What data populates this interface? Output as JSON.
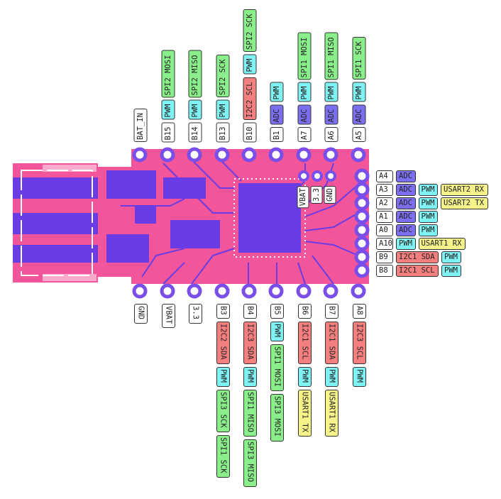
{
  "top_pins": [
    {
      "name": "BAT_IN",
      "funcs": []
    },
    {
      "name": "B15",
      "funcs": [
        {
          "t": "PWM",
          "k": "pwm"
        },
        {
          "t": "SPI2 MOSI",
          "k": "spi"
        }
      ]
    },
    {
      "name": "B14",
      "funcs": [
        {
          "t": "PWM",
          "k": "pwm"
        },
        {
          "t": "SPI2 MISO",
          "k": "spi"
        }
      ]
    },
    {
      "name": "B13",
      "funcs": [
        {
          "t": "PWM",
          "k": "pwm"
        },
        {
          "t": "SPI2 SCK",
          "k": "spi"
        }
      ]
    },
    {
      "name": "B10",
      "funcs": [
        {
          "t": "I2C2 SCL",
          "k": "i2c"
        },
        {
          "t": "PWM",
          "k": "pwm"
        },
        {
          "t": "SPI2 SCK",
          "k": "spi"
        }
      ]
    },
    {
      "name": "B1",
      "funcs": [
        {
          "t": "ADC",
          "k": "adc"
        },
        {
          "t": "PWM",
          "k": "pwm"
        }
      ]
    },
    {
      "name": "A7",
      "funcs": [
        {
          "t": "ADC",
          "k": "adc"
        },
        {
          "t": "PWM",
          "k": "pwm"
        },
        {
          "t": "SPI1 MOSI",
          "k": "spi"
        }
      ]
    },
    {
      "name": "A6",
      "funcs": [
        {
          "t": "ADC",
          "k": "adc"
        },
        {
          "t": "PWM",
          "k": "pwm"
        },
        {
          "t": "SPI1 MISO",
          "k": "spi"
        }
      ]
    },
    {
      "name": "A5",
      "funcs": [
        {
          "t": "ADC",
          "k": "adc"
        },
        {
          "t": "PWM",
          "k": "pwm"
        },
        {
          "t": "SPI1 SCK",
          "k": "spi"
        }
      ]
    }
  ],
  "bottom_pins": [
    {
      "name": "GND",
      "funcs": []
    },
    {
      "name": "VBAT",
      "funcs": []
    },
    {
      "name": "3.3",
      "funcs": []
    },
    {
      "name": "B3",
      "funcs": [
        {
          "t": "I2C2 SDA",
          "k": "i2c"
        },
        {
          "t": "PWM",
          "k": "pwm"
        },
        {
          "t": "SPI3 SCK",
          "k": "spi"
        },
        {
          "t": "SPI1 SCK",
          "k": "spi"
        }
      ]
    },
    {
      "name": "B4",
      "funcs": [
        {
          "t": "I2C3 SDA",
          "k": "i2c"
        },
        {
          "t": "PWM",
          "k": "pwm"
        },
        {
          "t": "SPI1 MISO",
          "k": "spi"
        },
        {
          "t": "SPI3 MISO",
          "k": "spi"
        }
      ]
    },
    {
      "name": "B5",
      "funcs": [
        {
          "t": "PWM",
          "k": "pwm"
        },
        {
          "t": "SPI1 MOSI",
          "k": "spi"
        },
        {
          "t": "SPI3 MOSI",
          "k": "spi"
        }
      ]
    },
    {
      "name": "B6",
      "funcs": [
        {
          "t": "I2C1 SCL",
          "k": "i2c"
        },
        {
          "t": "PWM",
          "k": "pwm"
        },
        {
          "t": "USART1 TX",
          "k": "usart"
        }
      ]
    },
    {
      "name": "B7",
      "funcs": [
        {
          "t": "I2C1 SDA",
          "k": "i2c"
        },
        {
          "t": "PWM",
          "k": "pwm"
        },
        {
          "t": "USART1 RX",
          "k": "usart"
        }
      ]
    },
    {
      "name": "A8",
      "funcs": [
        {
          "t": "I2C3 SCL",
          "k": "i2c"
        },
        {
          "t": "PWM",
          "k": "pwm"
        }
      ]
    }
  ],
  "right_pins": [
    {
      "name": "A4",
      "funcs": [
        {
          "t": "ADC",
          "k": "adc"
        }
      ]
    },
    {
      "name": "A3",
      "funcs": [
        {
          "t": "ADC",
          "k": "adc"
        },
        {
          "t": "PWM",
          "k": "pwm"
        },
        {
          "t": "USART2 RX",
          "k": "usart"
        }
      ]
    },
    {
      "name": "A2",
      "funcs": [
        {
          "t": "ADC",
          "k": "adc"
        },
        {
          "t": "PWM",
          "k": "pwm"
        },
        {
          "t": "USART2 TX",
          "k": "usart"
        }
      ]
    },
    {
      "name": "A1",
      "funcs": [
        {
          "t": "ADC",
          "k": "adc"
        },
        {
          "t": "PWM",
          "k": "pwm"
        }
      ]
    },
    {
      "name": "A0",
      "funcs": [
        {
          "t": "ADC",
          "k": "adc"
        },
        {
          "t": "PWM",
          "k": "pwm"
        }
      ]
    },
    {
      "name": "A10",
      "funcs": [
        {
          "t": "PWM",
          "k": "pwm"
        },
        {
          "t": "USART1 RX",
          "k": "usart"
        }
      ]
    },
    {
      "name": "B9",
      "funcs": [
        {
          "t": "I2C1 SDA",
          "k": "i2c"
        },
        {
          "t": "PWM",
          "k": "pwm"
        }
      ]
    },
    {
      "name": "B8",
      "funcs": [
        {
          "t": "I2C1 SCL",
          "k": "i2c"
        },
        {
          "t": "PWM",
          "k": "pwm"
        }
      ]
    }
  ],
  "board_labels": {
    "vbat": "VBAT",
    "v33": "3.3",
    "gnd": "GND"
  },
  "colors": {
    "board": "#f2559a",
    "copper": "#6a3ce6",
    "pad_ring": "#7a4ee8",
    "adc": "#7b6ff0",
    "pwm": "#7ff3f3",
    "spi": "#8aee8a",
    "i2c": "#f47f7f",
    "usart": "#f6f38a"
  }
}
